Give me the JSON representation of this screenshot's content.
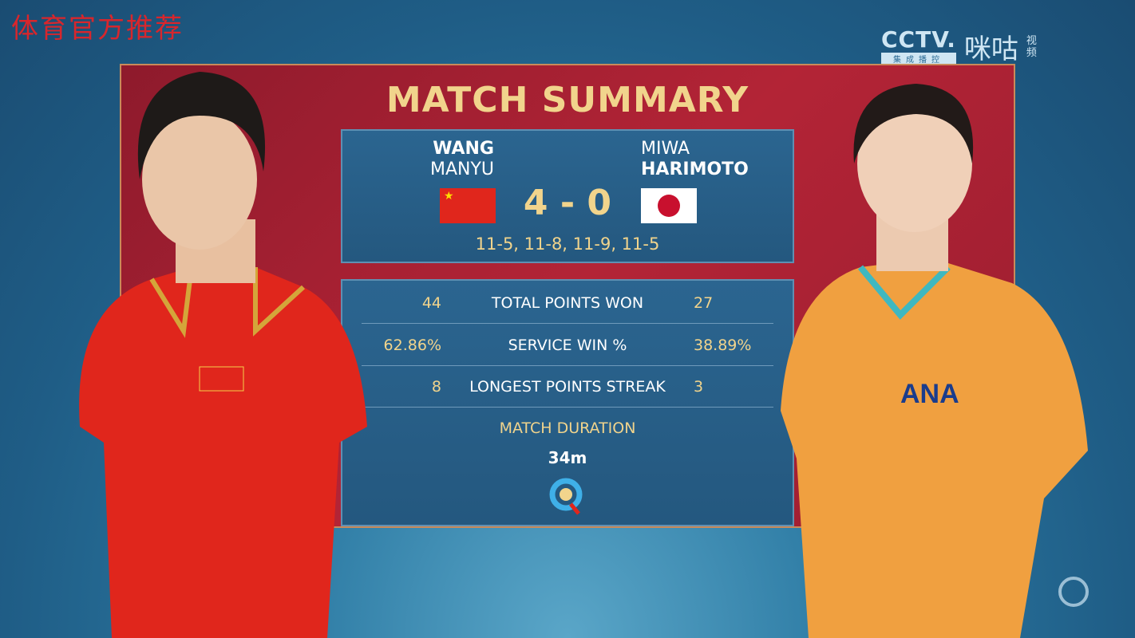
{
  "watermark": "体育官方推荐",
  "broadcaster": {
    "name": "CCTV.",
    "sub": "集成播控",
    "partner": "咪咕",
    "partner_sub": "视频"
  },
  "title": "MATCH SUMMARY",
  "player1": {
    "first": "WANG",
    "last": "MANYU",
    "country_flag": "china-flag",
    "shirt_color": "#e0261c"
  },
  "player2": {
    "first": "MIWA",
    "last": "HARIMOTO",
    "country_flag": "japan-flag",
    "shirt_color": "#f0a040"
  },
  "score": "4 - 0",
  "games": "11-5, 11-8, 11-9, 11-5",
  "stats": [
    {
      "p1": "44",
      "label": "TOTAL POINTS WON",
      "p2": "27"
    },
    {
      "p1": "62.86%",
      "label": "SERVICE WIN %",
      "p2": "38.89%"
    },
    {
      "p1": "8",
      "label": "LONGEST POINTS STREAK",
      "p2": "3"
    }
  ],
  "duration": {
    "label": "MATCH DURATION",
    "value": "34m"
  },
  "colors": {
    "gold": "#f1d48c",
    "panel_red": "#b32436",
    "box_blue": "#28618f"
  }
}
